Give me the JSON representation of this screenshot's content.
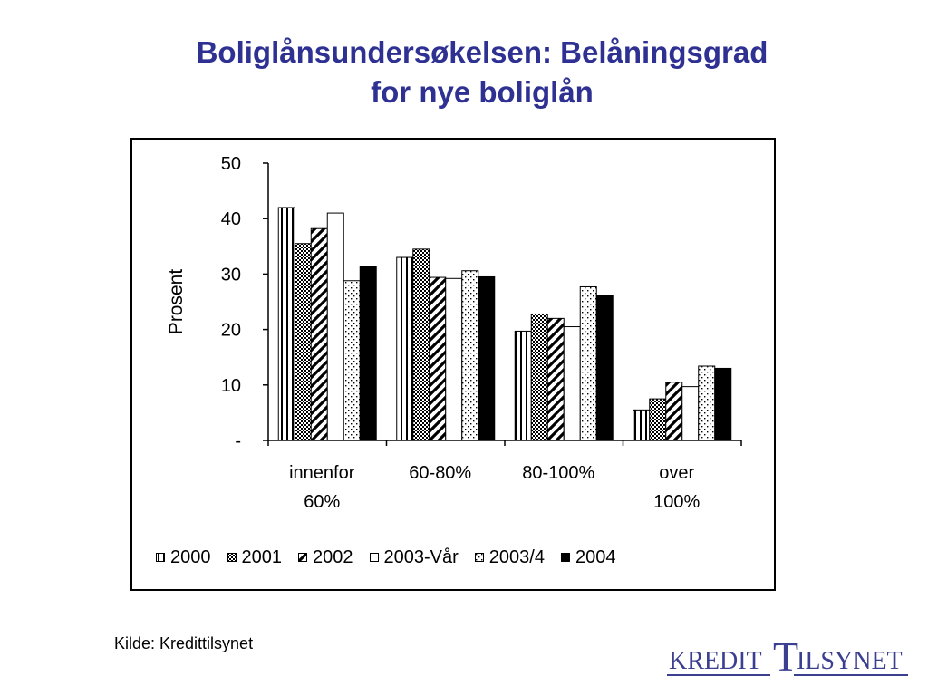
{
  "title": {
    "line1": "Boliglånsundersøkelsen: Belåningsgrad",
    "line2": "for nye boliglån"
  },
  "colors": {
    "title": "#2e3192",
    "logo": "#3b3f8f",
    "bars": "#000000"
  },
  "chart_data": {
    "type": "bar",
    "categories": [
      [
        "innenfor",
        "60%"
      ],
      [
        "60-80%"
      ],
      [
        "80-100%"
      ],
      [
        "over",
        "100%"
      ]
    ],
    "series": [
      {
        "name": "2000",
        "pattern": "vertical-lines",
        "values": [
          42.0,
          33.0,
          19.7,
          5.5
        ]
      },
      {
        "name": "2001",
        "pattern": "crosshatch",
        "values": [
          35.5,
          34.5,
          22.8,
          7.5
        ]
      },
      {
        "name": "2002",
        "pattern": "diagonal-stripes",
        "values": [
          38.2,
          29.4,
          22.0,
          10.5
        ]
      },
      {
        "name": "2003-Vår",
        "pattern": "white",
        "values": [
          41.0,
          29.2,
          20.5,
          9.7
        ]
      },
      {
        "name": "2003/4",
        "pattern": "dots",
        "values": [
          28.8,
          30.6,
          27.7,
          13.4
        ]
      },
      {
        "name": "2004",
        "pattern": "black",
        "values": [
          31.4,
          29.5,
          26.2,
          13.0
        ]
      }
    ],
    "ylabel": "Prosent",
    "xlabel": "",
    "ylim": [
      0,
      50
    ],
    "yticks": [
      {
        "value": 50,
        "label": "50"
      },
      {
        "value": 40,
        "label": "40"
      },
      {
        "value": 30,
        "label": "30"
      },
      {
        "value": 20,
        "label": "20"
      },
      {
        "value": 10,
        "label": "10"
      },
      {
        "value": 0,
        "label": "-"
      }
    ],
    "grid": false,
    "legend": "bottom"
  },
  "source": "Kilde: Kredittilsynet",
  "logo": {
    "part1": "KREDIT",
    "big_letter": "T",
    "part2": "ILSYNET"
  }
}
